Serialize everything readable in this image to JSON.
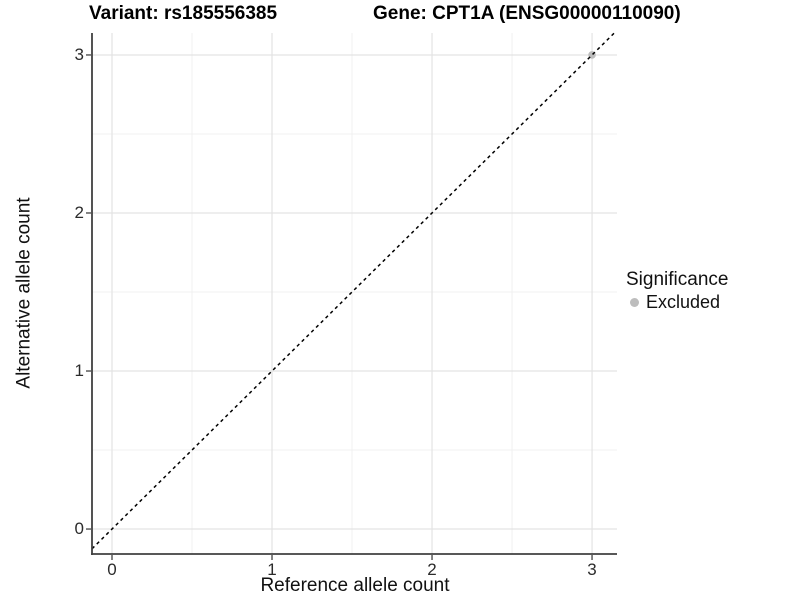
{
  "figure": {
    "title_left": "Variant: rs185556385",
    "title_right": "Gene: CPT1A (ENSG00000110090)"
  },
  "chart_data": {
    "type": "scatter",
    "xlabel": "Reference allele count",
    "ylabel": "Alternative allele count",
    "xlim": [
      -0.125,
      3.156
    ],
    "ylim": [
      -0.158,
      3.139
    ],
    "x_ticks": [
      0,
      1,
      2,
      3
    ],
    "y_ticks": [
      0,
      1,
      2,
      3
    ],
    "x_minor_gridlines": [
      0.5,
      1.5,
      2.5
    ],
    "y_minor_gridlines": [
      0.5,
      1.5,
      2.5
    ],
    "grid": true,
    "points": [
      {
        "x": 3,
        "y": 3,
        "significance": "Excluded",
        "color": "#bdbdbd"
      }
    ],
    "reference_line": {
      "slope": 1,
      "intercept": 0,
      "style": "dashed",
      "color": "#000000"
    },
    "legend": {
      "title": "Significance",
      "position": "right",
      "items": [
        {
          "label": "Excluded",
          "color": "#bdbdbd",
          "marker": "circle"
        }
      ]
    }
  },
  "colors": {
    "background": "#ffffff",
    "grid_major": "#e3e3e3",
    "grid_minor": "#f0f0f0",
    "axis_line": "#404040",
    "tick_mark": "#333333"
  }
}
